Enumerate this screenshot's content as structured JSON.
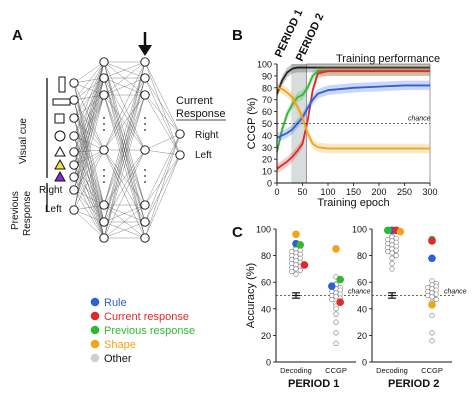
{
  "panels": {
    "a": {
      "letter": "A",
      "group_visual_cue": "Visual cue",
      "group_previous_response": "Previous Response",
      "right_label": "Right",
      "left_label": "Left",
      "output_title_line1": "Current",
      "output_title_line2": "Response",
      "output_right": "Right",
      "output_left": "Left",
      "cue_shapes": [
        "tall-rectangle-icon",
        "wide-rectangle-icon",
        "square-icon",
        "circle-icon",
        "triangle-icon",
        "triangle-filled-yellow-icon",
        "triangle-filled-purple-icon"
      ],
      "cue_colors": {
        "yellow": "#f2e23a",
        "purple": "#8a2be2"
      }
    },
    "b": {
      "letter": "B",
      "period1_label": "PERIOD 1",
      "period2_label": "PERIOD 2",
      "training_perf_label": "Training performance",
      "chance_label": "chance"
    },
    "c": {
      "letter": "C",
      "chance_label": "chance",
      "period1_label": "PERIOD 1",
      "period2_label": "PERIOD 2"
    }
  },
  "legend": [
    {
      "label": "Rule",
      "color": "#2e5fd8"
    },
    {
      "label": "Current response",
      "color": "#e02a2a"
    },
    {
      "label": "Previous response",
      "color": "#33b733"
    },
    {
      "label": "Shape",
      "color": "#f2a21b"
    },
    {
      "label": "Other",
      "color": "#cfcfcf"
    }
  ],
  "chart_data": [
    {
      "type": "line",
      "xlabel": "Training epoch",
      "ylabel": "CCGP (%)",
      "xlim": [
        0,
        300
      ],
      "ylim": [
        0,
        100
      ],
      "xticks": [
        0,
        50,
        100,
        150,
        200,
        250,
        300
      ],
      "yticks": [
        0,
        10,
        20,
        30,
        40,
        50,
        60,
        70,
        80,
        90,
        100
      ],
      "chance": 50,
      "shaded_regions": [
        [
          28,
          42
        ],
        [
          42,
          58
        ]
      ],
      "series": [
        {
          "color": "#222222",
          "x": [
            0,
            10,
            20,
            30,
            40,
            50,
            60,
            70,
            80,
            100,
            150,
            200,
            250,
            300
          ],
          "y": [
            75,
            86,
            93,
            96,
            97,
            97,
            97,
            97,
            97,
            97,
            97,
            97,
            97,
            97
          ]
        },
        {
          "color": "#33b733",
          "x": [
            0,
            10,
            20,
            30,
            40,
            50,
            60,
            70,
            80,
            100,
            150,
            200,
            250,
            300
          ],
          "y": [
            26,
            45,
            58,
            66,
            72,
            74,
            80,
            90,
            94,
            94,
            94,
            94,
            94,
            94
          ]
        },
        {
          "color": "#e02a2a",
          "x": [
            0,
            10,
            20,
            30,
            40,
            50,
            60,
            70,
            80,
            100,
            150,
            200,
            250,
            300
          ],
          "y": [
            12,
            15,
            18,
            22,
            27,
            33,
            52,
            78,
            92,
            94,
            94,
            94,
            94,
            94
          ]
        },
        {
          "color": "#2e5fd8",
          "x": [
            0,
            10,
            20,
            30,
            40,
            50,
            60,
            70,
            80,
            100,
            150,
            200,
            250,
            300
          ],
          "y": [
            38,
            40,
            42,
            45,
            50,
            55,
            63,
            70,
            75,
            78,
            80,
            81,
            82,
            82
          ]
        },
        {
          "color": "#f2a21b",
          "x": [
            0,
            10,
            20,
            30,
            40,
            50,
            60,
            70,
            80,
            100,
            150,
            200,
            250,
            300
          ],
          "y": [
            80,
            79,
            76,
            72,
            64,
            55,
            42,
            33,
            30,
            29,
            29,
            29,
            29,
            29
          ]
        }
      ]
    },
    {
      "type": "scatter",
      "panel": "PERIOD 1",
      "ylabel": "Accuracy (%)",
      "ylim": [
        0,
        100
      ],
      "yticks": [
        0,
        20,
        40,
        60,
        80,
        100
      ],
      "categories": [
        "Decoding",
        "CCGP"
      ],
      "chance": 50,
      "errorbar": {
        "category": "Decoding",
        "mean": 50,
        "low": 48,
        "high": 52
      },
      "points": [
        {
          "category": "Decoding",
          "value": 96,
          "color": "#f2a21b"
        },
        {
          "category": "Decoding",
          "value": 89,
          "color": "#2e5fd8"
        },
        {
          "category": "Decoding",
          "value": 88,
          "color": "#33b733"
        },
        {
          "category": "Decoding",
          "value": 86,
          "color": "#cfcfcf"
        },
        {
          "category": "Decoding",
          "value": 85,
          "color": "#cfcfcf"
        },
        {
          "category": "Decoding",
          "value": 84,
          "color": "#cfcfcf"
        },
        {
          "category": "Decoding",
          "value": 83,
          "color": "#cfcfcf"
        },
        {
          "category": "Decoding",
          "value": 82,
          "color": "#cfcfcf"
        },
        {
          "category": "Decoding",
          "value": 81,
          "color": "#cfcfcf"
        },
        {
          "category": "Decoding",
          "value": 80,
          "color": "#cfcfcf"
        },
        {
          "category": "Decoding",
          "value": 79,
          "color": "#cfcfcf"
        },
        {
          "category": "Decoding",
          "value": 78,
          "color": "#cfcfcf"
        },
        {
          "category": "Decoding",
          "value": 77,
          "color": "#cfcfcf"
        },
        {
          "category": "Decoding",
          "value": 76,
          "color": "#cfcfcf"
        },
        {
          "category": "Decoding",
          "value": 75,
          "color": "#cfcfcf"
        },
        {
          "category": "Decoding",
          "value": 74,
          "color": "#cfcfcf"
        },
        {
          "category": "Decoding",
          "value": 73,
          "color": "#cfcfcf"
        },
        {
          "category": "Decoding",
          "value": 72,
          "color": "#cfcfcf"
        },
        {
          "category": "Decoding",
          "value": 71,
          "color": "#cfcfcf"
        },
        {
          "category": "Decoding",
          "value": 70,
          "color": "#cfcfcf"
        },
        {
          "category": "Decoding",
          "value": 69,
          "color": "#cfcfcf"
        },
        {
          "category": "Decoding",
          "value": 68,
          "color": "#cfcfcf"
        },
        {
          "category": "Decoding",
          "value": 66,
          "color": "#cfcfcf"
        },
        {
          "category": "Decoding",
          "value": 73,
          "color": "#e02a2a"
        },
        {
          "category": "CCGP",
          "value": 85,
          "color": "#f2a21b"
        },
        {
          "category": "CCGP",
          "value": 64,
          "color": "#cfcfcf"
        },
        {
          "category": "CCGP",
          "value": 62,
          "color": "#33b733"
        },
        {
          "category": "CCGP",
          "value": 59,
          "color": "#cfcfcf"
        },
        {
          "category": "CCGP",
          "value": 58,
          "color": "#cfcfcf"
        },
        {
          "category": "CCGP",
          "value": 57,
          "color": "#2e5fd8"
        },
        {
          "category": "CCGP",
          "value": 56,
          "color": "#cfcfcf"
        },
        {
          "category": "CCGP",
          "value": 55,
          "color": "#cfcfcf"
        },
        {
          "category": "CCGP",
          "value": 54,
          "color": "#cfcfcf"
        },
        {
          "category": "CCGP",
          "value": 53,
          "color": "#cfcfcf"
        },
        {
          "category": "CCGP",
          "value": 52,
          "color": "#cfcfcf"
        },
        {
          "category": "CCGP",
          "value": 51,
          "color": "#cfcfcf"
        },
        {
          "category": "CCGP",
          "value": 50,
          "color": "#cfcfcf"
        },
        {
          "category": "CCGP",
          "value": 49,
          "color": "#cfcfcf"
        },
        {
          "category": "CCGP",
          "value": 48,
          "color": "#cfcfcf"
        },
        {
          "category": "CCGP",
          "value": 47,
          "color": "#cfcfcf"
        },
        {
          "category": "CCGP",
          "value": 45,
          "color": "#e02a2a"
        },
        {
          "category": "CCGP",
          "value": 44,
          "color": "#cfcfcf"
        },
        {
          "category": "CCGP",
          "value": 42,
          "color": "#cfcfcf"
        },
        {
          "category": "CCGP",
          "value": 40,
          "color": "#cfcfcf"
        },
        {
          "category": "CCGP",
          "value": 36,
          "color": "#cfcfcf"
        },
        {
          "category": "CCGP",
          "value": 30,
          "color": "#cfcfcf"
        },
        {
          "category": "CCGP",
          "value": 22,
          "color": "#cfcfcf"
        },
        {
          "category": "CCGP",
          "value": 14,
          "color": "#cfcfcf"
        }
      ]
    },
    {
      "type": "scatter",
      "panel": "PERIOD 2",
      "ylim": [
        0,
        100
      ],
      "yticks": [
        0,
        20,
        40,
        60,
        80,
        100
      ],
      "categories": [
        "Decoding",
        "CCGP"
      ],
      "chance": 50,
      "errorbar": {
        "category": "Decoding",
        "mean": 50,
        "low": 48,
        "high": 52
      },
      "points": [
        {
          "category": "Decoding",
          "value": 99,
          "color": "#2e5fd8"
        },
        {
          "category": "Decoding",
          "value": 99,
          "color": "#e02a2a"
        },
        {
          "category": "Decoding",
          "value": 99,
          "color": "#33b733"
        },
        {
          "category": "Decoding",
          "value": 98,
          "color": "#f2a21b"
        },
        {
          "category": "Decoding",
          "value": 95,
          "color": "#cfcfcf"
        },
        {
          "category": "Decoding",
          "value": 94,
          "color": "#cfcfcf"
        },
        {
          "category": "Decoding",
          "value": 93,
          "color": "#cfcfcf"
        },
        {
          "category": "Decoding",
          "value": 92,
          "color": "#cfcfcf"
        },
        {
          "category": "Decoding",
          "value": 91,
          "color": "#cfcfcf"
        },
        {
          "category": "Decoding",
          "value": 90,
          "color": "#cfcfcf"
        },
        {
          "category": "Decoding",
          "value": 89,
          "color": "#cfcfcf"
        },
        {
          "category": "Decoding",
          "value": 88,
          "color": "#cfcfcf"
        },
        {
          "category": "Decoding",
          "value": 87,
          "color": "#cfcfcf"
        },
        {
          "category": "Decoding",
          "value": 86,
          "color": "#cfcfcf"
        },
        {
          "category": "Decoding",
          "value": 85,
          "color": "#cfcfcf"
        },
        {
          "category": "Decoding",
          "value": 84,
          "color": "#cfcfcf"
        },
        {
          "category": "Decoding",
          "value": 83,
          "color": "#cfcfcf"
        },
        {
          "category": "Decoding",
          "value": 82,
          "color": "#cfcfcf"
        },
        {
          "category": "Decoding",
          "value": 80,
          "color": "#cfcfcf"
        },
        {
          "category": "Decoding",
          "value": 78,
          "color": "#cfcfcf"
        },
        {
          "category": "Decoding",
          "value": 74,
          "color": "#cfcfcf"
        },
        {
          "category": "Decoding",
          "value": 70,
          "color": "#cfcfcf"
        },
        {
          "category": "CCGP",
          "value": 92,
          "color": "#33b733"
        },
        {
          "category": "CCGP",
          "value": 91,
          "color": "#e02a2a"
        },
        {
          "category": "CCGP",
          "value": 78,
          "color": "#2e5fd8"
        },
        {
          "category": "CCGP",
          "value": 61,
          "color": "#cfcfcf"
        },
        {
          "category": "CCGP",
          "value": 59,
          "color": "#cfcfcf"
        },
        {
          "category": "CCGP",
          "value": 58,
          "color": "#cfcfcf"
        },
        {
          "category": "CCGP",
          "value": 57,
          "color": "#cfcfcf"
        },
        {
          "category": "CCGP",
          "value": 56,
          "color": "#cfcfcf"
        },
        {
          "category": "CCGP",
          "value": 55,
          "color": "#cfcfcf"
        },
        {
          "category": "CCGP",
          "value": 54,
          "color": "#cfcfcf"
        },
        {
          "category": "CCGP",
          "value": 53,
          "color": "#cfcfcf"
        },
        {
          "category": "CCGP",
          "value": 52,
          "color": "#cfcfcf"
        },
        {
          "category": "CCGP",
          "value": 51,
          "color": "#cfcfcf"
        },
        {
          "category": "CCGP",
          "value": 50,
          "color": "#cfcfcf"
        },
        {
          "category": "CCGP",
          "value": 49,
          "color": "#cfcfcf"
        },
        {
          "category": "CCGP",
          "value": 47,
          "color": "#cfcfcf"
        },
        {
          "category": "CCGP",
          "value": 45,
          "color": "#cfcfcf"
        },
        {
          "category": "CCGP",
          "value": 43,
          "color": "#f2a21b"
        },
        {
          "category": "CCGP",
          "value": 35,
          "color": "#cfcfcf"
        },
        {
          "category": "CCGP",
          "value": 22,
          "color": "#cfcfcf"
        },
        {
          "category": "CCGP",
          "value": 16,
          "color": "#cfcfcf"
        }
      ]
    }
  ]
}
